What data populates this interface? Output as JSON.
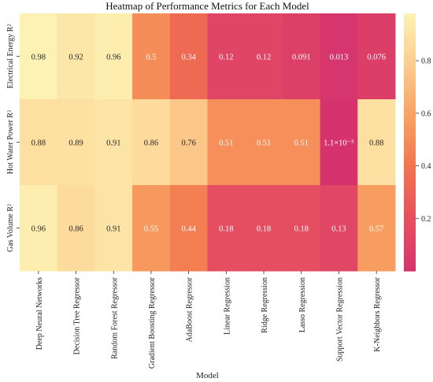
{
  "chart_data": {
    "type": "heatmap",
    "title": "Heatmap of Performance Metrics for Each Model",
    "xlabel": "Model",
    "ylabel": "",
    "rows": [
      "Electrical Energy R²",
      "Hot Water Power R²",
      "Gas Volume R²"
    ],
    "columns": [
      "Deep Neural Networks",
      "Decision Tree Regressor",
      "Random Forest Regressor",
      "Gradient Boosting Regressor",
      "AdaBoost Regressor",
      "Linear Regression",
      "Ridge Regression",
      "Lasso Regression",
      "Support Vector Regression",
      "K-Neighbors Regressor"
    ],
    "values": [
      [
        0.98,
        0.92,
        0.96,
        0.5,
        0.34,
        0.12,
        0.12,
        0.091,
        0.013,
        0.076
      ],
      [
        0.88,
        0.89,
        0.91,
        0.86,
        0.76,
        0.51,
        0.51,
        0.51,
        1.1e-05,
        0.88
      ],
      [
        0.96,
        0.86,
        0.91,
        0.55,
        0.44,
        0.18,
        0.18,
        0.18,
        0.13,
        0.57
      ]
    ],
    "labels": [
      [
        "0.98",
        "0.92",
        "0.96",
        "0.5",
        "0.34",
        "0.12",
        "0.12",
        "0.091",
        "0.013",
        "0.076"
      ],
      [
        "0.88",
        "0.89",
        "0.91",
        "0.86",
        "0.76",
        "0.51",
        "0.51",
        "0.51",
        "1.1×10⁻⁵",
        "0.88"
      ],
      [
        "0.96",
        "0.86",
        "0.91",
        "0.55",
        "0.44",
        "0.18",
        "0.18",
        "0.18",
        "0.13",
        "0.57"
      ]
    ],
    "colorbar": {
      "range": [
        0,
        0.98
      ],
      "ticks": [
        0.2,
        0.4,
        0.6,
        0.8
      ],
      "tick_labels": [
        "0.2",
        "0.4",
        "0.6",
        "0.8"
      ],
      "colors": [
        "#d6336e",
        "#e6505f",
        "#f2744e",
        "#f8a162",
        "#fbcc8e",
        "#fdf2b4"
      ]
    },
    "grid": false
  }
}
